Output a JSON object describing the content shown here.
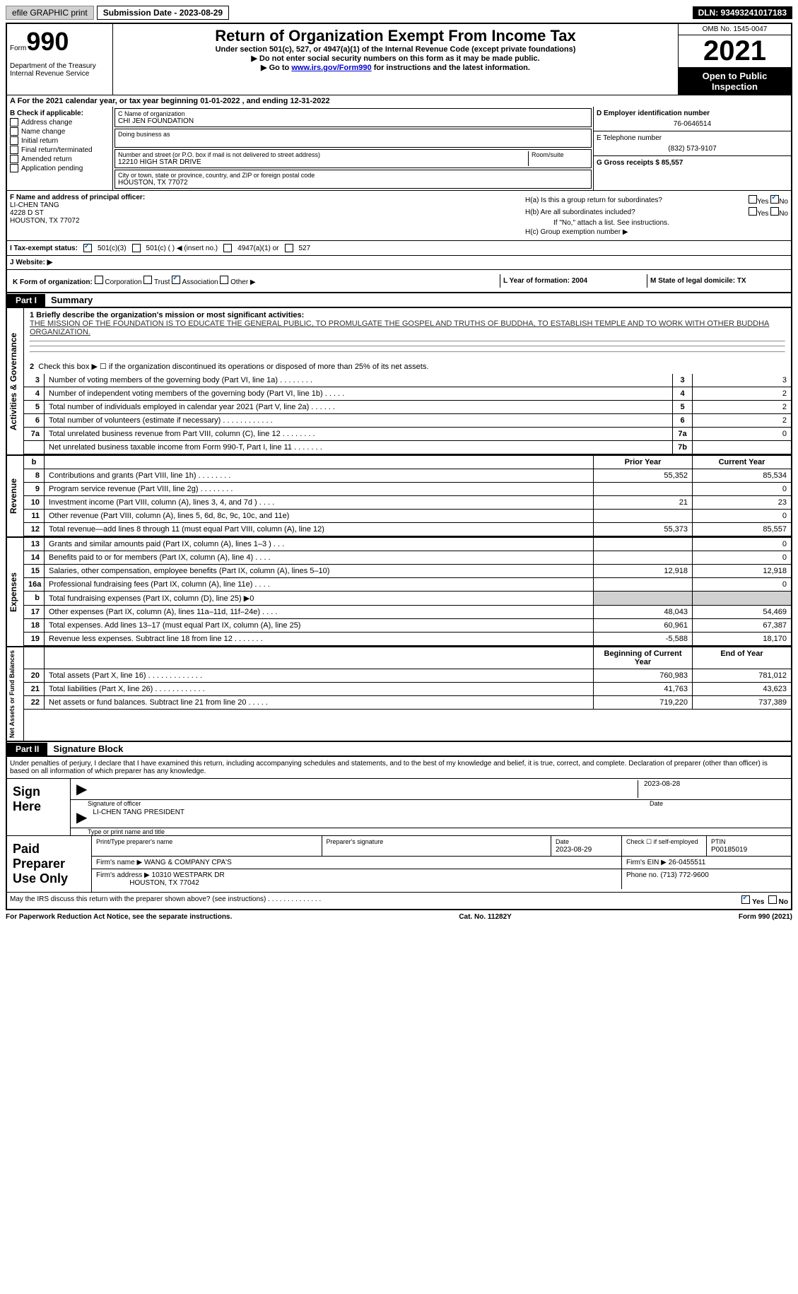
{
  "topbar": {
    "efile": "efile GRAPHIC print",
    "sub_label": "Submission Date - 2023-08-29",
    "dln": "DLN: 93493241017183"
  },
  "header": {
    "form_word": "Form",
    "form_num": "990",
    "title": "Return of Organization Exempt From Income Tax",
    "subtitle": "Under section 501(c), 527, or 4947(a)(1) of the Internal Revenue Code (except private foundations)",
    "inst1": "▶ Do not enter social security numbers on this form as it may be made public.",
    "inst2_pre": "▶ Go to ",
    "inst2_link": "www.irs.gov/Form990",
    "inst2_post": " for instructions and the latest information.",
    "dept": "Department of the Treasury\nInternal Revenue Service",
    "omb": "OMB No. 1545-0047",
    "year": "2021",
    "inspect": "Open to Public Inspection"
  },
  "rowA": "A For the 2021 calendar year, or tax year beginning 01-01-2022   , and ending 12-31-2022",
  "colB": {
    "header": "B Check if applicable:",
    "items": [
      "Address change",
      "Name change",
      "Initial return",
      "Final return/terminated",
      "Amended return",
      "Application pending"
    ]
  },
  "colC": {
    "name_label": "C Name of organization",
    "name": "CHI JEN FOUNDATION",
    "dba": "Doing business as",
    "addr_label": "Number and street (or P.O. box if mail is not delivered to street address)",
    "room": "Room/suite",
    "addr": "12210 HIGH STAR DRIVE",
    "city_label": "City or town, state or province, country, and ZIP or foreign postal code",
    "city": "HOUSTON, TX  77072"
  },
  "colD": {
    "d_label": "D Employer identification number",
    "ein": "76-0646514",
    "e_label": "E Telephone number",
    "phone": "(832) 573-9107",
    "g_label": "G Gross receipts $ 85,557"
  },
  "rowF": {
    "label": "F Name and address of principal officer:",
    "name": "LI-CHEN TANG",
    "addr": "4228 D ST",
    "city": "HOUSTON, TX  77072"
  },
  "rowH": {
    "ha": "H(a)  Is this a group return for subordinates?",
    "hb": "H(b)  Are all subordinates included?",
    "hb_note": "If \"No,\" attach a list. See instructions.",
    "hc": "H(c)  Group exemption number ▶",
    "yes": "Yes",
    "no": "No"
  },
  "rowI": {
    "label": "I   Tax-exempt status:",
    "opts": [
      "501(c)(3)",
      "501(c) (  ) ◀ (insert no.)",
      "4947(a)(1) or",
      "527"
    ]
  },
  "rowJ": "J   Website: ▶",
  "rowK": {
    "label": "K Form of organization:",
    "opts": [
      "Corporation",
      "Trust",
      "Association",
      "Other ▶"
    ],
    "l": "L Year of formation: 2004",
    "m": "M State of legal domicile: TX"
  },
  "part1": {
    "header": "Part I",
    "title": "Summary",
    "mission_label": "1   Briefly describe the organization's mission or most significant activities:",
    "mission": "THE MISSION OF THE FOUNDATION IS TO EDUCATE THE GENERAL PUBLIC, TO PROMULGATE THE GOSPEL AND TRUTHS OF BUDDHA, TO ESTABLISH TEMPLE AND TO WORK WITH OTHER BUDDHA ORGANIZATION.",
    "line2": "Check this box ▶ ☐  if the organization discontinued its operations or disposed of more than 25% of its net assets.",
    "tab_activities": "Activities & Governance",
    "lines": [
      {
        "n": "3",
        "t": "Number of voting members of the governing body (Part VI, line 1a)   .    .    .    .    .    .    .    .",
        "box": "3",
        "v": "3"
      },
      {
        "n": "4",
        "t": "Number of independent voting members of the governing body (Part VI, line 1b)   .    .    .    .    .",
        "box": "4",
        "v": "2"
      },
      {
        "n": "5",
        "t": "Total number of individuals employed in calendar year 2021 (Part V, line 2a)   .    .    .    .    .    .",
        "box": "5",
        "v": "2"
      },
      {
        "n": "6",
        "t": "Total number of volunteers (estimate if necessary)    .    .    .    .    .    .    .    .    .    .    .    .",
        "box": "6",
        "v": "2"
      },
      {
        "n": "7a",
        "t": "Total unrelated business revenue from Part VIII, column (C), line 12    .    .    .    .    .    .    .    .",
        "box": "7a",
        "v": "0"
      },
      {
        "n": "",
        "t": "Net unrelated business taxable income from Form 990-T, Part I, line 11   .    .    .    .    .    .    .",
        "box": "7b",
        "v": ""
      }
    ],
    "tab_revenue": "Revenue",
    "prior_year": "Prior Year",
    "current_year": "Current Year",
    "rev_lines": [
      {
        "n": "8",
        "t": "Contributions and grants (Part VIII, line 1h)   .    .    .    .    .    .    .    .",
        "p": "55,352",
        "c": "85,534"
      },
      {
        "n": "9",
        "t": "Program service revenue (Part VIII, line 2g)   .    .    .    .    .    .    .    .",
        "p": "",
        "c": "0"
      },
      {
        "n": "10",
        "t": "Investment income (Part VIII, column (A), lines 3, 4, and 7d )   .    .    .    .",
        "p": "21",
        "c": "23"
      },
      {
        "n": "11",
        "t": "Other revenue (Part VIII, column (A), lines 5, 6d, 8c, 9c, 10c, and 11e)",
        "p": "",
        "c": "0"
      },
      {
        "n": "12",
        "t": "Total revenue—add lines 8 through 11 (must equal Part VIII, column (A), line 12)",
        "p": "55,373",
        "c": "85,557"
      }
    ],
    "tab_expenses": "Expenses",
    "exp_lines": [
      {
        "n": "13",
        "t": "Grants and similar amounts paid (Part IX, column (A), lines 1–3 )   .    .    .",
        "p": "",
        "c": "0"
      },
      {
        "n": "14",
        "t": "Benefits paid to or for members (Part IX, column (A), line 4)   .    .    .    .",
        "p": "",
        "c": "0"
      },
      {
        "n": "15",
        "t": "Salaries, other compensation, employee benefits (Part IX, column (A), lines 5–10)",
        "p": "12,918",
        "c": "12,918"
      },
      {
        "n": "16a",
        "t": "Professional fundraising fees (Part IX, column (A), line 11e)   .    .    .    .",
        "p": "",
        "c": "0"
      },
      {
        "n": "b",
        "t": "Total fundraising expenses (Part IX, column (D), line 25) ▶0",
        "p": "SHADE",
        "c": "SHADE"
      },
      {
        "n": "17",
        "t": "Other expenses (Part IX, column (A), lines 11a–11d, 11f–24e)   .    .    .    .",
        "p": "48,043",
        "c": "54,469"
      },
      {
        "n": "18",
        "t": "Total expenses. Add lines 13–17 (must equal Part IX, column (A), line 25)",
        "p": "60,961",
        "c": "67,387"
      },
      {
        "n": "19",
        "t": "Revenue less expenses. Subtract line 18 from line 12   .    .    .    .    .    .    .",
        "p": "-5,588",
        "c": "18,170"
      }
    ],
    "tab_net": "Net Assets or Fund Balances",
    "begin_year": "Beginning of Current Year",
    "end_year": "End of Year",
    "net_lines": [
      {
        "n": "20",
        "t": "Total assets (Part X, line 16)  .    .    .    .    .    .    .    .    .    .    .    .    .",
        "p": "760,983",
        "c": "781,012"
      },
      {
        "n": "21",
        "t": "Total liabilities (Part X, line 26)  .    .    .    .    .    .    .    .    .    .    .    .",
        "p": "41,763",
        "c": "43,623"
      },
      {
        "n": "22",
        "t": "Net assets or fund balances. Subtract line 21 from line 20   .    .    .    .    .",
        "p": "719,220",
        "c": "737,389"
      }
    ]
  },
  "part2": {
    "header": "Part II",
    "title": "Signature Block",
    "text": "Under penalties of perjury, I declare that I have examined this return, including accompanying schedules and statements, and to the best of my knowledge and belief, it is true, correct, and complete. Declaration of preparer (other than officer) is based on all information of which preparer has any knowledge.",
    "sign_here": "Sign Here",
    "sig_officer": "Signature of officer",
    "sig_date": "2023-08-28",
    "date_label": "Date",
    "sig_name": "LI-CHEN TANG PRESIDENT",
    "sig_name_label": "Type or print name and title",
    "paid": "Paid Preparer Use Only",
    "prep_name_label": "Print/Type preparer's name",
    "prep_sig_label": "Preparer's signature",
    "prep_date_label": "Date",
    "prep_date": "2023-08-29",
    "check_label": "Check ☐ if self-employed",
    "ptin_label": "PTIN",
    "ptin": "P00185019",
    "firm_name_label": "Firm's name    ▶",
    "firm_name": "WANG & COMPANY CPA'S",
    "firm_ein_label": "Firm's EIN ▶",
    "firm_ein": "26-0455511",
    "firm_addr_label": "Firm's address ▶",
    "firm_addr": "10310 WESTPARK DR",
    "firm_city": "HOUSTON, TX  77042",
    "firm_phone_label": "Phone no.",
    "firm_phone": "(713) 772-9600",
    "discuss": "May the IRS discuss this return with the preparer shown above? (see instructions)   .    .    .    .    .    .    .    .    .    .    .    .    .    ."
  },
  "footer": {
    "left": "For Paperwork Reduction Act Notice, see the separate instructions.",
    "mid": "Cat. No. 11282Y",
    "right": "Form 990 (2021)"
  }
}
